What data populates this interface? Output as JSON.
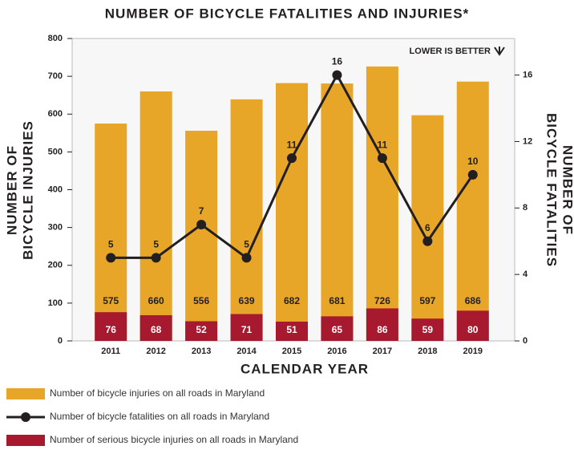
{
  "chart_data": {
    "type": "bar_line",
    "title": "NUMBER OF BICYCLE FATALITIES AND INJURIES*",
    "annotation": "LOWER IS BETTER",
    "x_label": "CALENDAR YEAR",
    "y_label": [
      "NUMBER OF",
      "BICYCLE INJURIES"
    ],
    "y2_label": [
      "NUMBER OF",
      "BICYCLE FATALITIES"
    ],
    "categories": [
      "2011",
      "2012",
      "2013",
      "2014",
      "2015",
      "2016",
      "2017",
      "2018",
      "2019"
    ],
    "series": [
      {
        "name": "Number of bicycle injuries on all roads in Maryland",
        "type": "bar",
        "color": "#e8a628",
        "values": [
          575,
          660,
          556,
          639,
          682,
          681,
          726,
          597,
          686
        ]
      },
      {
        "name": "Number of bicycle fatalities on all roads in Maryland",
        "type": "line",
        "axis": "y2",
        "color": "#231f20",
        "values": [
          5,
          5,
          7,
          5,
          11,
          16,
          11,
          6,
          10
        ]
      },
      {
        "name": "Number of serious bicycle injuries on all roads in Maryland",
        "type": "bar",
        "color": "#a6192e",
        "values": [
          76,
          68,
          52,
          71,
          51,
          65,
          86,
          59,
          80
        ]
      }
    ],
    "ylim": [
      0,
      800
    ],
    "yticks": [
      0,
      100,
      200,
      300,
      400,
      500,
      600,
      700,
      800
    ],
    "y2lim": [
      0,
      18.2
    ],
    "y2ticks": [
      0,
      4,
      8,
      12,
      16
    ]
  }
}
